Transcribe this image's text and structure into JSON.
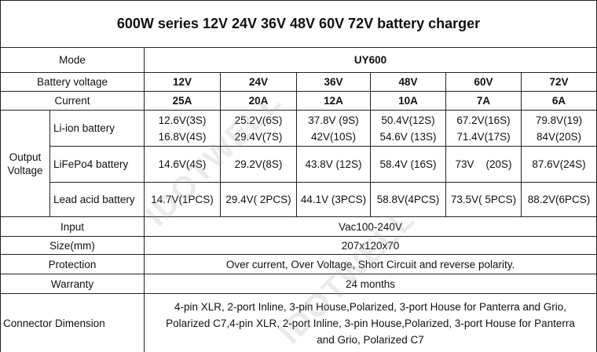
{
  "title": "600W series 12V 24V 36V 48V 60V 72V battery charger",
  "watermark": "IDOTWELL",
  "mode": {
    "label": "Mode",
    "value": "UY600"
  },
  "battery_voltage": {
    "label": "Battery voltage",
    "values": [
      "12V",
      "24V",
      "36V",
      "48V",
      "60V",
      "72V"
    ]
  },
  "current": {
    "label": "Current",
    "values": [
      "25A",
      "20A",
      "12A",
      "10A",
      "7A",
      "6A"
    ]
  },
  "output_voltage": {
    "label": "Output Voltage",
    "rows": [
      {
        "label": "Li-ion battery",
        "values": [
          [
            "12.6V(3S)",
            "16.8V(4S)"
          ],
          [
            "25.2V(6S)",
            "29.4V(7S)"
          ],
          [
            "37.8V (9S)",
            "42V(10S)"
          ],
          [
            "50.4V(12S)",
            "54.6V (13S)"
          ],
          [
            "67.2V(16S)",
            "71.4V(17S)"
          ],
          [
            "79.8V(19)",
            "84V(20S)"
          ]
        ]
      },
      {
        "label": "LiFePo4 battery",
        "values": [
          "14.6V(4S)",
          "29.2V(8S)",
          "43.8V (12S)",
          "58.4V (16S)",
          "73V    (20S)",
          "87.6V(24S)"
        ]
      },
      {
        "label": "Lead acid battery",
        "values": [
          "14.7V(1PCS)",
          "29.4V( 2PCS)",
          "44.1V (3PCS)",
          "58.8V(4PCS)",
          "73.5V( 5PCS)",
          "88.2V(6PCS)"
        ]
      }
    ]
  },
  "specs": [
    {
      "label": "Input",
      "value": "Vac100-240V"
    },
    {
      "label": "Size(mm)",
      "value": "207x120x70"
    },
    {
      "label": "Protection",
      "value": "Over current, Over Voltage, Short Circuit and reverse polarity."
    },
    {
      "label": "Warranty",
      "value": "24 months"
    }
  ],
  "connector": {
    "label": "Connector Dimension",
    "lines": [
      "4-pin XLR, 2-port Inline, 3-pin House,Polarized, 3-port House for Panterra and Grio,",
      "Polarized C7,4-pin XLR, 2-port Inline, 3-pin House,Polarized, 3-port House for Panterra",
      "and Grio, Polarized C7"
    ]
  }
}
